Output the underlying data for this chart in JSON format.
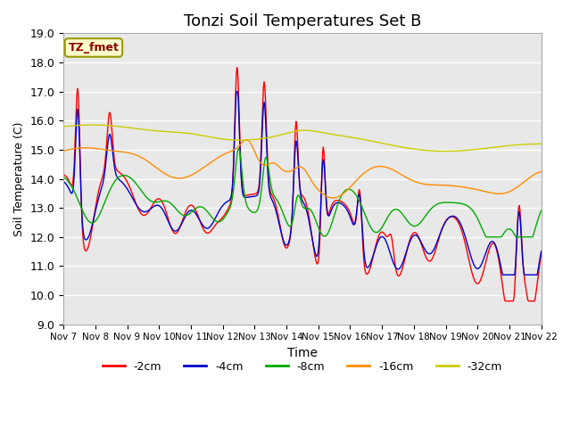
{
  "title": "Tonzi Soil Temperatures Set B",
  "xlabel": "Time",
  "ylabel": "Soil Temperature (C)",
  "ylim": [
    9.0,
    19.0
  ],
  "yticks": [
    9.0,
    10.0,
    11.0,
    12.0,
    13.0,
    14.0,
    15.0,
    16.0,
    17.0,
    18.0,
    19.0
  ],
  "xtick_labels": [
    "Nov 7",
    "Nov 8",
    "Nov 9",
    "Nov 10",
    "Nov 11",
    "Nov 12",
    "Nov 13",
    "Nov 14",
    "Nov 15",
    "Nov 16",
    "Nov 17",
    "Nov 18",
    "Nov 19",
    "Nov 20",
    "Nov 21",
    "Nov 22"
  ],
  "annotation_text": "TZ_fmet",
  "annotation_color": "#8B0000",
  "annotation_bg": "#FFFFCC",
  "colors": {
    "-2cm": "#FF0000",
    "-4cm": "#0000CC",
    "-8cm": "#00AA00",
    "-16cm": "#FF8C00",
    "-32cm": "#CCCC00"
  },
  "legend_labels": [
    "-2cm",
    "-4cm",
    "-8cm",
    "-16cm",
    "-32cm"
  ],
  "plot_bg": "#E8E8E8",
  "grid_color": "#FFFFFF",
  "title_fontsize": 13
}
